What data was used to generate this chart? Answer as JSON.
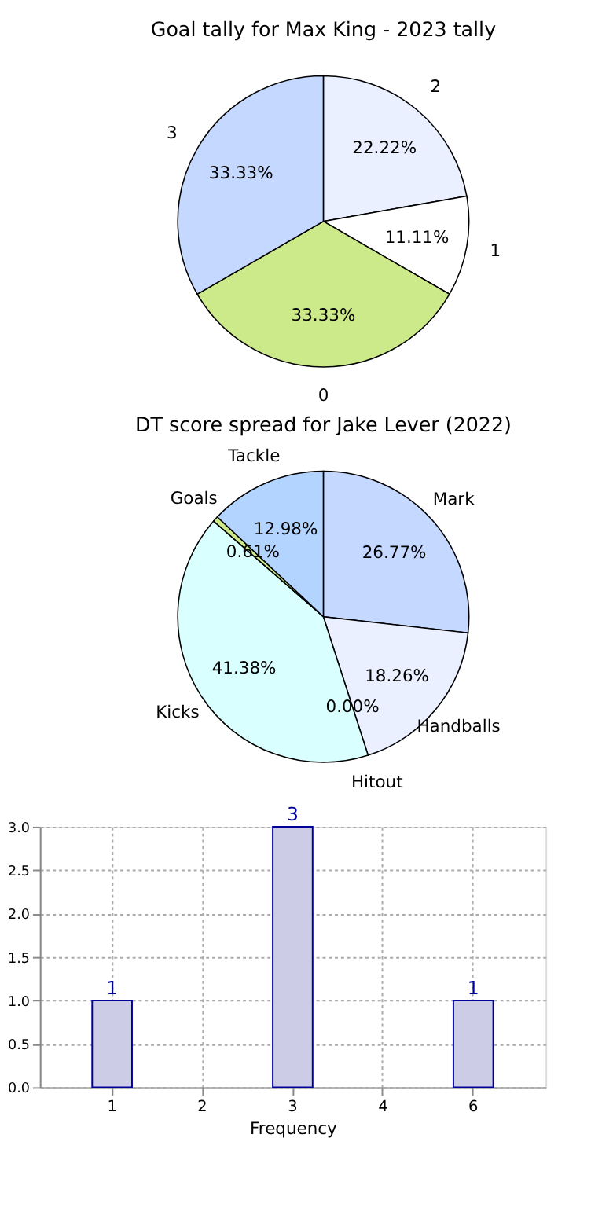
{
  "chart_data": [
    {
      "type": "pie",
      "title": "Goal tally for Max King - 2023 tally",
      "categories": [
        "2",
        "1",
        "0",
        "3"
      ],
      "values": [
        22.22,
        11.11,
        33.33,
        33.33
      ],
      "value_labels": [
        "22.22%",
        "11.11%",
        "33.33%",
        "33.33%"
      ],
      "colors": [
        "#eaf0ff",
        "#ffffff",
        "#cdea8a",
        "#c5d8ff"
      ],
      "legend": false
    },
    {
      "type": "pie",
      "title": "DT score spread for Jake Lever (2022)",
      "categories": [
        "Mark",
        "Handballs",
        "Hitout",
        "Kicks",
        "Goals",
        "Tackle"
      ],
      "values": [
        26.77,
        18.26,
        0.0,
        41.38,
        0.61,
        12.98
      ],
      "value_labels": [
        "26.77%",
        "18.26%",
        "0.00%",
        "41.38%",
        "0.61%",
        "12.98%"
      ],
      "colors": [
        "#c5d8ff",
        "#eaf0ff",
        "#d8e4f8",
        "#d9ffff",
        "#cdea8a",
        "#b3d4ff"
      ],
      "legend": false
    },
    {
      "type": "bar",
      "xlabel": "Frequency",
      "categories": [
        "1",
        "2",
        "3",
        "4",
        "6"
      ],
      "values": [
        1,
        null,
        3,
        null,
        1
      ],
      "value_labels": [
        "1",
        null,
        "3",
        null,
        "1"
      ],
      "color": "#ccccE6",
      "ylim": [
        0,
        3
      ],
      "yticks": [
        {
          "value": 0,
          "label": "0.0"
        },
        0.5,
        {
          "value": 1,
          "label": "1.0"
        },
        1.5,
        {
          "value": 2,
          "label": "2.0"
        },
        2.5,
        {
          "value": 3,
          "label": "3.0"
        }
      ],
      "grid": true,
      "legend": false
    }
  ]
}
